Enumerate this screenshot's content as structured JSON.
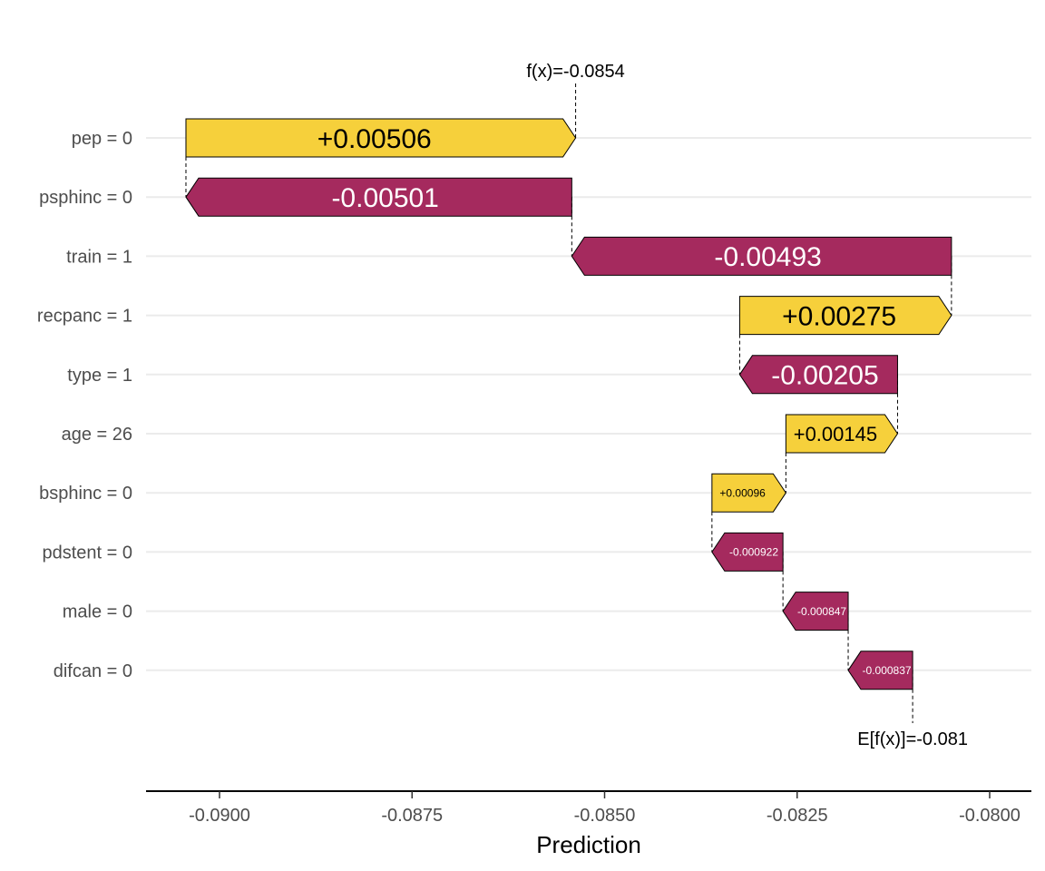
{
  "chart_data": {
    "type": "waterfall",
    "title": "",
    "xlabel": "Prediction",
    "ylabel": "",
    "xlim": [
      -0.0909,
      -0.0796
    ],
    "x_ticks": [
      -0.09,
      -0.0875,
      -0.085,
      -0.0825,
      -0.08
    ],
    "x_tick_labels": [
      "-0.0900",
      "-0.0875",
      "-0.0850",
      "-0.0825",
      "-0.0800"
    ],
    "grid": "horizontal",
    "base_value": -0.081,
    "base_label": "E[f(x)]=-0.081",
    "final_value": -0.0854,
    "final_label": "f(x)=-0.0854",
    "features": [
      {
        "label": "pep = 0",
        "value": 0.00506,
        "text": "+0.00506"
      },
      {
        "label": "psphinc = 0",
        "value": -0.00501,
        "text": "-0.00501"
      },
      {
        "label": "train = 1",
        "value": -0.00493,
        "text": "-0.00493"
      },
      {
        "label": "recpanc = 1",
        "value": 0.00275,
        "text": "+0.00275"
      },
      {
        "label": "type = 1",
        "value": -0.00205,
        "text": "-0.00205"
      },
      {
        "label": "age = 26",
        "value": 0.00145,
        "text": "+0.00145"
      },
      {
        "label": "bsphinc = 0",
        "value": 0.00096,
        "text": "+0.00096"
      },
      {
        "label": "pdstent = 0",
        "value": -0.000922,
        "text": "-0.000922"
      },
      {
        "label": "male = 0",
        "value": -0.000847,
        "text": "-0.000847"
      },
      {
        "label": "difcan = 0",
        "value": -0.000837,
        "text": "-0.000837"
      }
    ],
    "colors": {
      "positive": "#F6D03B",
      "negative": "#A52A5E",
      "positive_text": "#000000",
      "negative_text": "#ffffff"
    }
  }
}
